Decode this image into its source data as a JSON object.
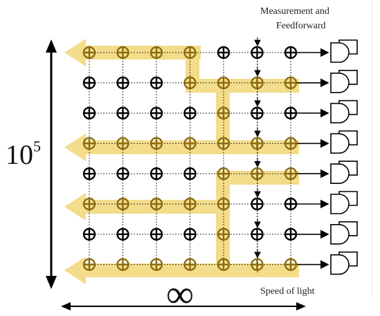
{
  "labels": {
    "measurement_line1": "Measurement and",
    "measurement_line2": "Feedforward",
    "speed_of_light": "Speed of light",
    "rows_base": "10",
    "rows_exponent": "5",
    "width_symbol": "∞"
  },
  "grid": {
    "columns": 7,
    "rows": 8
  },
  "colors": {
    "highlight": "#f2d776",
    "node_on_path": "#8a6a10",
    "node": "#000000",
    "wire": "#333333"
  },
  "paths": [
    {
      "name": "path-1",
      "cells": [
        [
          3,
          0
        ],
        [
          3,
          1
        ],
        [
          4,
          1
        ],
        [
          5,
          1
        ],
        [
          6,
          1
        ]
      ],
      "head_row": 0
    },
    {
      "name": "path-2",
      "cells": [
        [
          4,
          1
        ],
        [
          4,
          2
        ],
        [
          4,
          3
        ]
      ],
      "head_row": 3
    },
    {
      "name": "path-3",
      "cells": [
        [
          4,
          5
        ],
        [
          4,
          6
        ],
        [
          4,
          7
        ],
        [
          5,
          4
        ],
        [
          6,
          4
        ],
        [
          4,
          4
        ]
      ],
      "head_row": 5
    }
  ]
}
